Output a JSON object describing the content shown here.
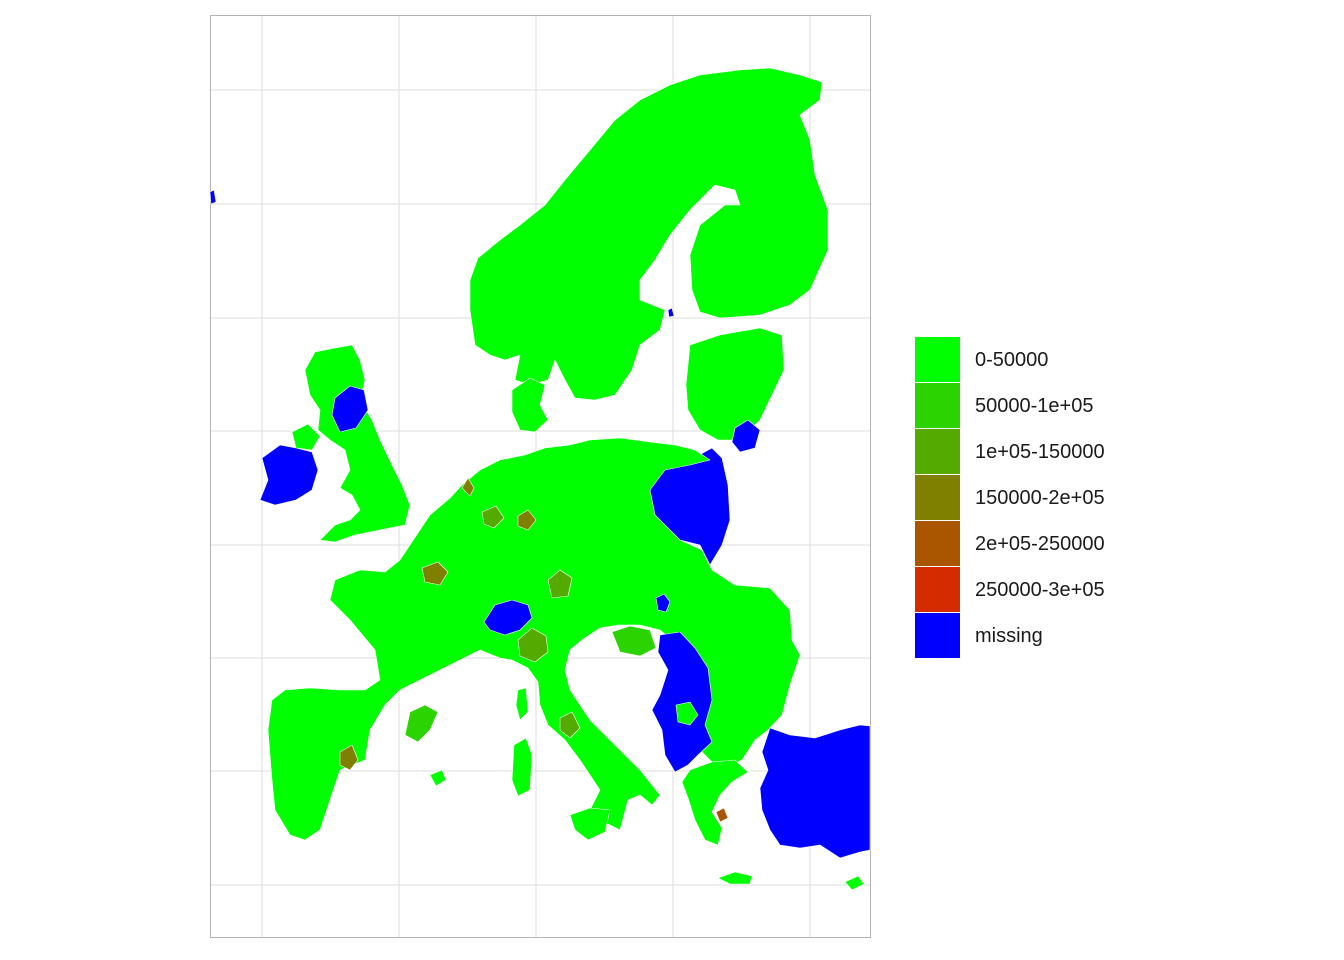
{
  "map": {
    "colors": {
      "c0": "#00FF00",
      "c1": "#2BD400",
      "c2": "#55AA00",
      "c3": "#808000",
      "c4": "#AA5500",
      "c5": "#D42B00",
      "missing": "#0000FF"
    }
  },
  "legend": {
    "items": [
      {
        "label": "0-50000",
        "color": "#00FF00"
      },
      {
        "label": "50000-1e+05",
        "color": "#2BD400"
      },
      {
        "label": "1e+05-150000",
        "color": "#55AA00"
      },
      {
        "label": "150000-2e+05",
        "color": "#808000"
      },
      {
        "label": "2e+05-250000",
        "color": "#AA5500"
      },
      {
        "label": "250000-3e+05",
        "color": "#D42B00"
      },
      {
        "label": "missing",
        "color": "#0000FF"
      }
    ]
  }
}
